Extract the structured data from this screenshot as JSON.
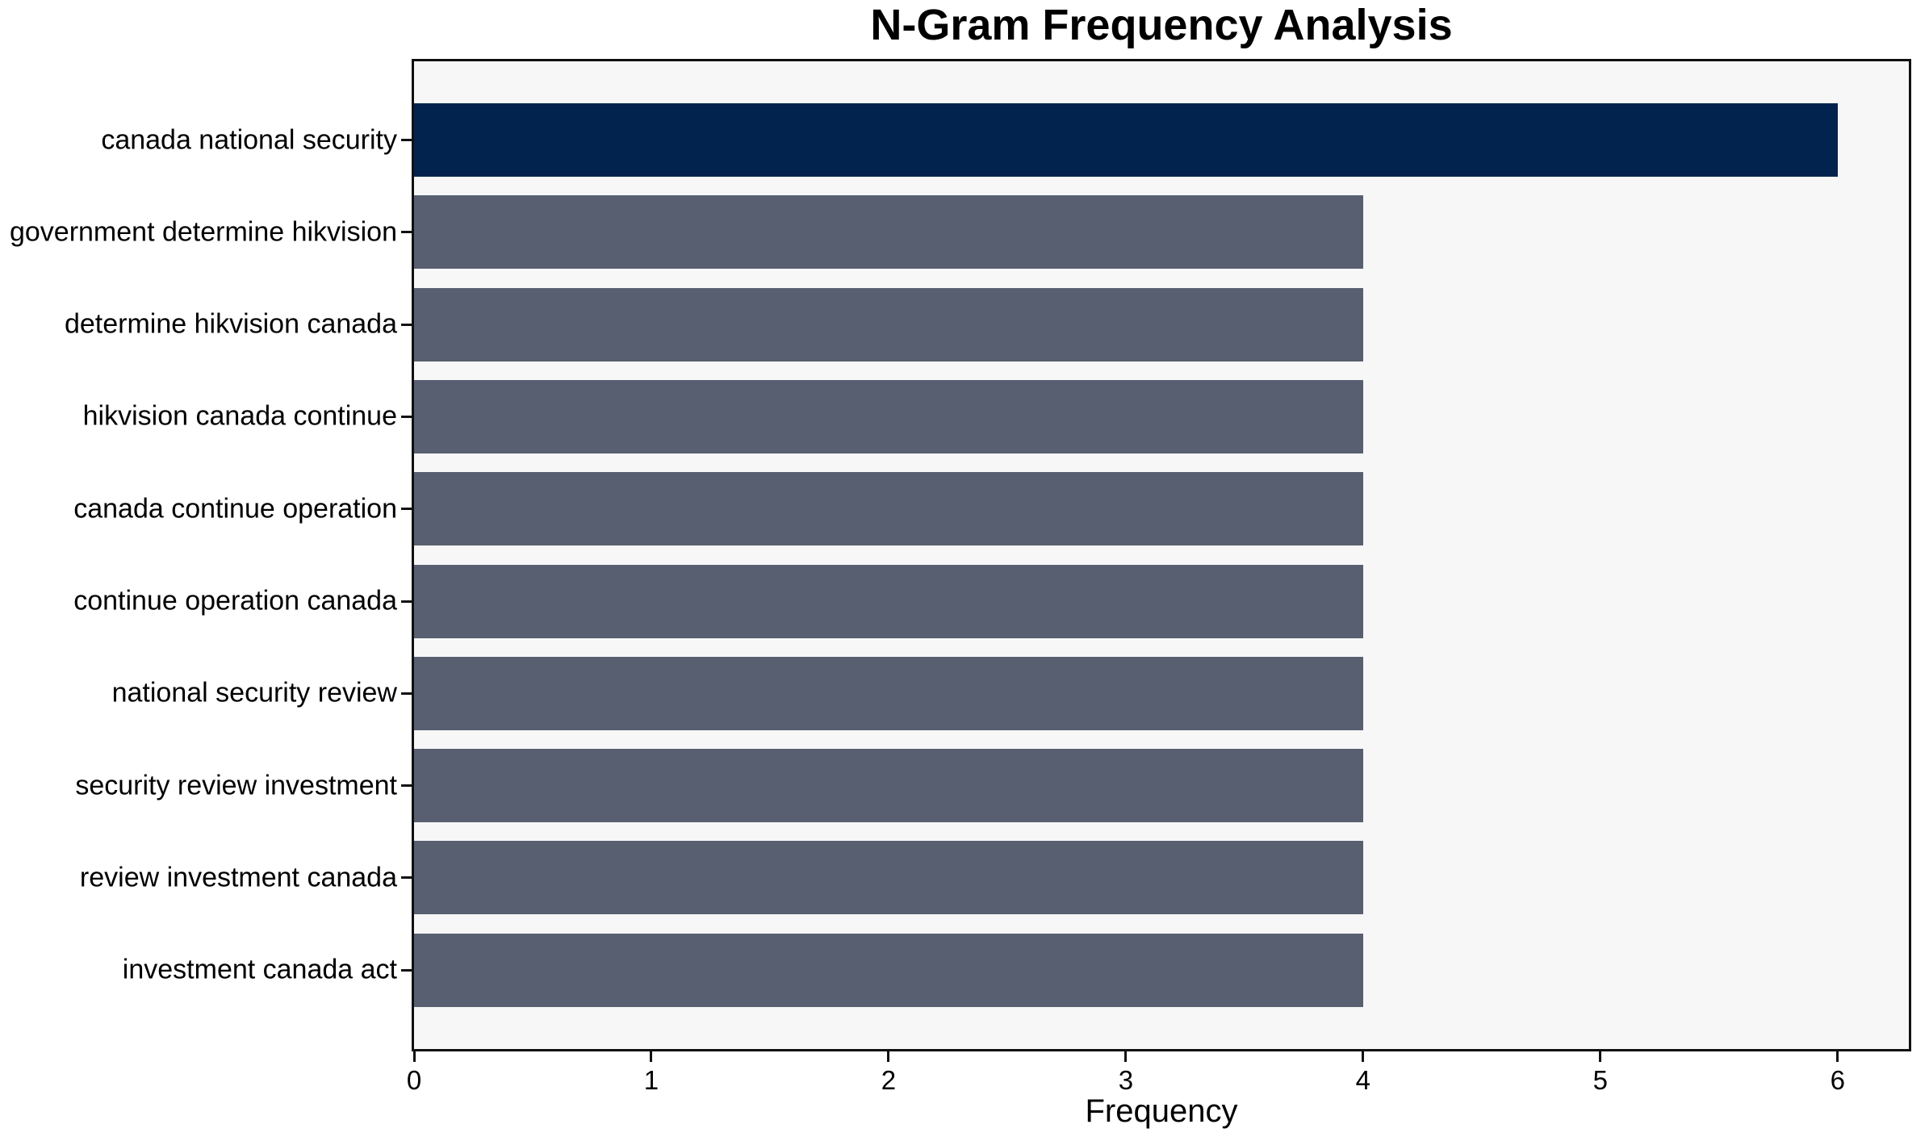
{
  "chart_data": {
    "type": "bar",
    "orientation": "horizontal",
    "title": "N-Gram Frequency Analysis",
    "xlabel": "Frequency",
    "ylabel": "",
    "categories": [
      "canada national security",
      "government determine hikvision",
      "determine hikvision canada",
      "hikvision canada continue",
      "canada continue operation",
      "continue operation canada",
      "national security review",
      "security review investment",
      "review investment canada",
      "investment canada act"
    ],
    "values": [
      6,
      4,
      4,
      4,
      4,
      4,
      4,
      4,
      4,
      4
    ],
    "bar_colors": [
      "#02234d",
      "#575f70",
      "#575f70",
      "#575f70",
      "#575f70",
      "#575f70",
      "#575f70",
      "#575f70",
      "#575f70",
      "#575f70"
    ],
    "xticks": [
      0,
      1,
      2,
      3,
      4,
      5,
      6
    ],
    "xlim": [
      0,
      6.3
    ],
    "grid": false,
    "legend": null,
    "colors": {
      "highlight_bar": "#02234d",
      "default_bar": "#575f70",
      "plot_background": "#f7f7f8",
      "figure_background": "#ffffff",
      "axis_text": "#000000",
      "spine": "#111111"
    }
  }
}
